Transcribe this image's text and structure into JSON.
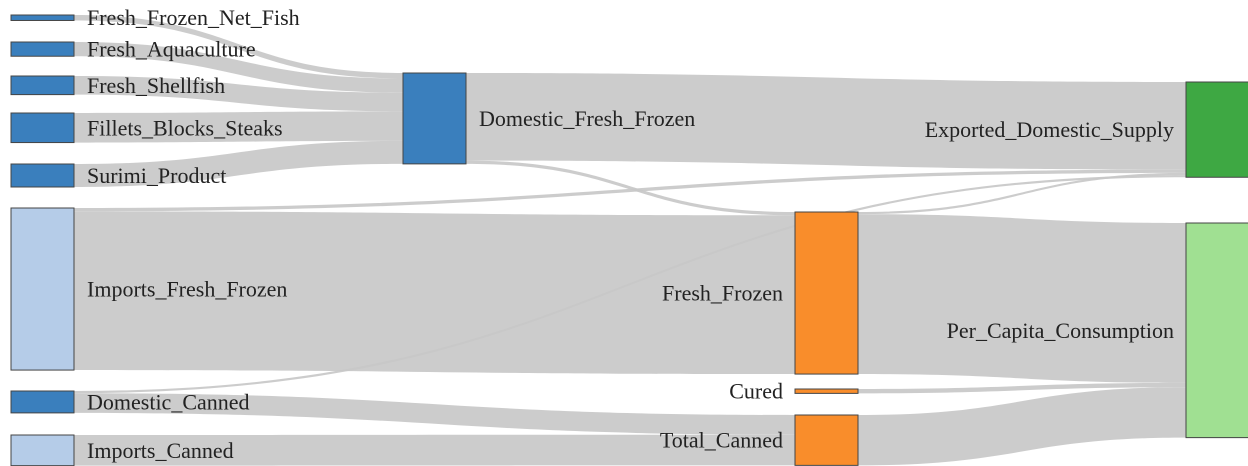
{
  "chart_data": {
    "type": "sankey",
    "title": "",
    "nodes": [
      {
        "id": "Fresh_Frozen_Net_Fish",
        "label": "Fresh_Frozen_Net_Fish",
        "color": "#3a7fbd"
      },
      {
        "id": "Fresh_Aquaculture",
        "label": "Fresh_Aquaculture",
        "color": "#3a7fbd"
      },
      {
        "id": "Fresh_Shellfish",
        "label": "Fresh_Shellfish",
        "color": "#3a7fbd"
      },
      {
        "id": "Fillets_Blocks_Steaks",
        "label": "Fillets_Blocks_Steaks",
        "color": "#3a7fbd"
      },
      {
        "id": "Surimi_Product",
        "label": "Surimi_Product",
        "color": "#3a7fbd"
      },
      {
        "id": "Imports_Fresh_Frozen",
        "label": "Imports_Fresh_Frozen",
        "color": "#b5cce8"
      },
      {
        "id": "Domestic_Canned",
        "label": "Domestic_Canned",
        "color": "#3a7fbd"
      },
      {
        "id": "Imports_Canned",
        "label": "Imports_Canned",
        "color": "#b5cce8"
      },
      {
        "id": "Domestic_Fresh_Frozen",
        "label": "Domestic_Fresh_Frozen",
        "color": "#3a7fbd"
      },
      {
        "id": "Fresh_Frozen",
        "label": "Fresh_Frozen",
        "color": "#f98d2b"
      },
      {
        "id": "Cured",
        "label": "Cured",
        "color": "#f98d2b"
      },
      {
        "id": "Total_Canned",
        "label": "Total_Canned",
        "color": "#f98d2b"
      },
      {
        "id": "Exported_Domestic_Supply",
        "label": "Exported_Domestic_Supply",
        "color": "#3ea843"
      },
      {
        "id": "Per_Capita_Consumption",
        "label": "Per_Capita_Consumption",
        "color": "#a0e092"
      }
    ],
    "links": [
      {
        "source": "Fresh_Frozen_Net_Fish",
        "target": "Domestic_Fresh_Frozen",
        "value": 0.5
      },
      {
        "source": "Fresh_Aquaculture",
        "target": "Domestic_Fresh_Frozen",
        "value": 1.3
      },
      {
        "source": "Fresh_Shellfish",
        "target": "Domestic_Fresh_Frozen",
        "value": 1.7
      },
      {
        "source": "Fillets_Blocks_Steaks",
        "target": "Domestic_Fresh_Frozen",
        "value": 2.7
      },
      {
        "source": "Surimi_Product",
        "target": "Domestic_Fresh_Frozen",
        "value": 2.1
      },
      {
        "source": "Domestic_Fresh_Frozen",
        "target": "Exported_Domestic_Supply",
        "value": 8.0
      },
      {
        "source": "Domestic_Fresh_Frozen",
        "target": "Fresh_Frozen",
        "value": 0.3
      },
      {
        "source": "Imports_Fresh_Frozen",
        "target": "Exported_Domestic_Supply",
        "value": 0.3
      },
      {
        "source": "Imports_Fresh_Frozen",
        "target": "Fresh_Frozen",
        "value": 14.5
      },
      {
        "source": "Domestic_Canned",
        "target": "Exported_Domestic_Supply",
        "value": 0.2
      },
      {
        "source": "Domestic_Canned",
        "target": "Total_Canned",
        "value": 1.8
      },
      {
        "source": "Imports_Canned",
        "target": "Total_Canned",
        "value": 2.8
      },
      {
        "source": "Fresh_Frozen",
        "target": "Exported_Domestic_Supply",
        "value": 0.2
      },
      {
        "source": "Fresh_Frozen",
        "target": "Per_Capita_Consumption",
        "value": 14.6
      },
      {
        "source": "Cured",
        "target": "Per_Capita_Consumption",
        "value": 0.4
      },
      {
        "source": "Total_Canned",
        "target": "Per_Capita_Consumption",
        "value": 4.6
      }
    ]
  }
}
